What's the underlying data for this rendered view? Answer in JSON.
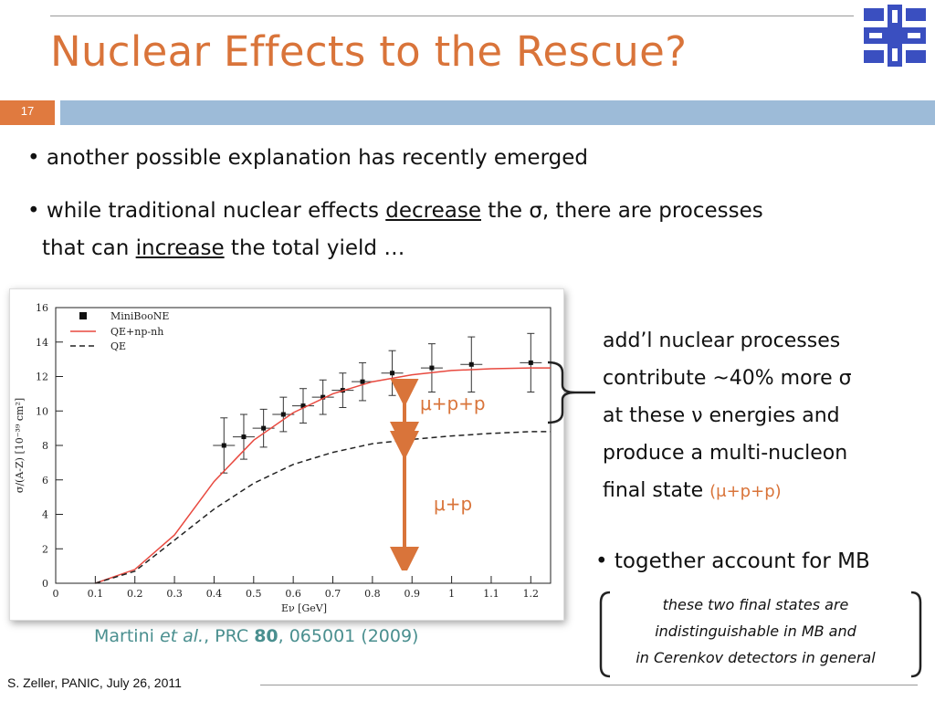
{
  "slide": {
    "title": "Nuclear Effects to the Rescue?",
    "number": "17",
    "footer": "S. Zeller, PANIC, July 26, 2011",
    "accent_color": "#d9743a",
    "bar_color": "#9dbbd8"
  },
  "bullets": {
    "b1": "another possible explanation has recently emerged",
    "b2_part1": "while traditional nuclear effects ",
    "b2_word1": "decrease",
    "b2_part2": " the σ, there are processes",
    "b2_line2_part1": "that can ",
    "b2_word2": "increase",
    "b2_line2_part2": " the total yield …"
  },
  "annotation": {
    "lines": [
      "add’l nuclear processes",
      "contribute ~40% more σ",
      "at these ν energies and",
      "produce a multi-nucleon"
    ],
    "last_line": "final state ",
    "last_line_highlight": "(μ+p+p)"
  },
  "bullet3": "together account for MB",
  "note": {
    "line1": "these two final states are",
    "line2": "indistinguishable in MB and",
    "line3": "in Cerenkov detectors in general"
  },
  "citation": {
    "prefix": "Martini ",
    "etal": "et al.",
    "journal": ", PRC ",
    "volume": "80",
    "rest": ", 065001 (2009)"
  },
  "overlays": {
    "upper_label": "μ+p+p",
    "lower_label": "μ+p"
  },
  "chart_data": {
    "type": "line",
    "xlabel": "Eν [GeV]",
    "ylabel": "σ/(A-Z) [10⁻³⁹ cm²]",
    "xlim": [
      0,
      1.25
    ],
    "ylim": [
      0,
      16
    ],
    "xticks": [
      "0",
      "0.1",
      "0.2",
      "0.3",
      "0.4",
      "0.5",
      "0.6",
      "0.7",
      "0.8",
      "0.9",
      "1",
      "1.1",
      "1.2"
    ],
    "yticks": [
      "0",
      "2",
      "4",
      "6",
      "8",
      "10",
      "12",
      "14",
      "16"
    ],
    "legend": [
      "MiniBooNE",
      "QE+np-nh",
      "QE"
    ],
    "legend_position": "top-left",
    "series": [
      {
        "name": "MiniBooNE",
        "style": "points",
        "points": [
          {
            "x": 0.425,
            "y": 8.0,
            "err": 1.6
          },
          {
            "x": 0.475,
            "y": 8.5,
            "err": 1.3
          },
          {
            "x": 0.525,
            "y": 9.0,
            "err": 1.1
          },
          {
            "x": 0.575,
            "y": 9.8,
            "err": 1.0
          },
          {
            "x": 0.625,
            "y": 10.3,
            "err": 1.0
          },
          {
            "x": 0.675,
            "y": 10.8,
            "err": 1.0
          },
          {
            "x": 0.725,
            "y": 11.2,
            "err": 1.0
          },
          {
            "x": 0.775,
            "y": 11.7,
            "err": 1.1
          },
          {
            "x": 0.85,
            "y": 12.2,
            "err": 1.3
          },
          {
            "x": 0.95,
            "y": 12.5,
            "err": 1.4
          },
          {
            "x": 1.05,
            "y": 12.7,
            "err": 1.6
          },
          {
            "x": 1.2,
            "y": 12.8,
            "err": 1.7
          }
        ]
      },
      {
        "name": "QE+np-nh",
        "style": "line",
        "color": "#e8493f",
        "x": [
          0.1,
          0.2,
          0.3,
          0.4,
          0.5,
          0.6,
          0.7,
          0.8,
          0.9,
          1.0,
          1.1,
          1.2,
          1.25
        ],
        "y": [
          0.0,
          0.8,
          2.8,
          5.9,
          8.3,
          9.9,
          11.0,
          11.7,
          12.1,
          12.35,
          12.45,
          12.5,
          12.5
        ]
      },
      {
        "name": "QE",
        "style": "dashed",
        "color": "#222222",
        "x": [
          0.1,
          0.2,
          0.3,
          0.4,
          0.5,
          0.6,
          0.7,
          0.8,
          0.9,
          1.0,
          1.1,
          1.2,
          1.25
        ],
        "y": [
          0.0,
          0.7,
          2.5,
          4.3,
          5.8,
          6.9,
          7.6,
          8.1,
          8.35,
          8.55,
          8.7,
          8.8,
          8.8
        ]
      }
    ]
  }
}
